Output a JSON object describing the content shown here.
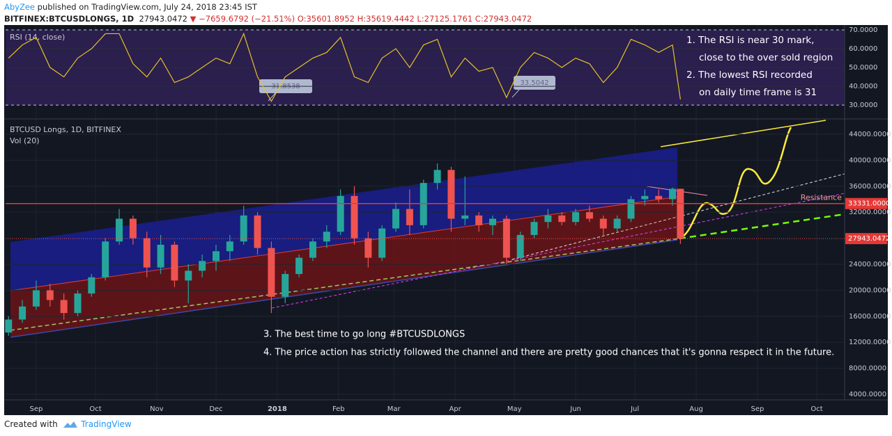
{
  "header": {
    "author": "AbyZee",
    "published": "published on TradingView.com, July 24, 2018 23:45 IST",
    "symbol": "BITFINEX:BTCUSDLONGS, 1D",
    "last": "27943.0472",
    "arrow": "▼",
    "change": "−7659.6792 (−21.51%)",
    "open": "O:35601.8952",
    "high": "H:35619.4442",
    "low": "L:27125.1761",
    "close": "C:27943.0472"
  },
  "chart_data": [
    {
      "type": "line",
      "title": "RSI (14, close)",
      "color": "#e6c229",
      "x": [
        17,
        24,
        31,
        38,
        45,
        52,
        59,
        66,
        73,
        80,
        87,
        94,
        101,
        108,
        115,
        122,
        129,
        136,
        143,
        150,
        157,
        164,
        171,
        178,
        185,
        192,
        199,
        206,
        213,
        220,
        227,
        234,
        241,
        248,
        255,
        262,
        269,
        276,
        283,
        290,
        297,
        304,
        311,
        318,
        325,
        332,
        339,
        346,
        353,
        357
      ],
      "values": [
        55,
        62,
        66,
        50,
        45,
        55,
        60,
        68,
        68,
        52,
        45,
        55,
        42,
        45,
        50,
        55,
        52,
        68,
        45,
        32,
        45,
        50,
        55,
        58,
        66,
        45,
        42,
        55,
        60,
        50,
        62,
        65,
        45,
        55,
        48,
        50,
        34,
        50,
        58,
        55,
        50,
        55,
        52,
        42,
        50,
        65,
        62,
        58,
        62,
        33
      ],
      "xlim": [
        15.5,
        440.1
      ],
      "ylim": [
        23,
        72.6
      ],
      "yticks": [
        {
          "value": 70,
          "label": "70.0000"
        },
        {
          "value": 60,
          "label": "60.0000"
        },
        {
          "value": 50,
          "label": "50.0000"
        },
        {
          "value": 40,
          "label": "40.0000"
        },
        {
          "value": 30,
          "label": "30.0000"
        }
      ],
      "annotations": [
        "31.8538",
        "33.5042"
      ],
      "notes": [
        "1.  The RSI is near 30 mark,",
        "close to the over sold region",
        "2.  The lowest RSI recorded",
        "on daily time frame is 31"
      ]
    },
    {
      "type": "candlestick",
      "title": "BTCUSD Longs, 1D, BITFINEX",
      "subtitle": "Vol (20)",
      "up_color": "#26a69a",
      "down_color": "#ef5350",
      "x": [
        17,
        24,
        31,
        38,
        45,
        52,
        59,
        66,
        73,
        80,
        87,
        94,
        101,
        108,
        115,
        122,
        129,
        136,
        143,
        150,
        157,
        164,
        171,
        178,
        185,
        192,
        199,
        206,
        213,
        220,
        227,
        234,
        241,
        248,
        255,
        262,
        269,
        276,
        283,
        290,
        297,
        304,
        311,
        318,
        325,
        332,
        339,
        346,
        353,
        357
      ],
      "open": [
        13500,
        15500,
        17500,
        20000,
        18500,
        16500,
        19500,
        22000,
        27500,
        31000,
        28000,
        23500,
        27000,
        21500,
        23000,
        24500,
        26000,
        27500,
        31500,
        26500,
        19000,
        22500,
        25000,
        27500,
        29000,
        34500,
        28000,
        25000,
        29500,
        32500,
        30000,
        36500,
        38500,
        31000,
        31500,
        30000,
        31000,
        25000,
        28500,
        30500,
        31500,
        30500,
        32000,
        31000,
        29500,
        31000,
        34000,
        34500,
        34000,
        35601.8952
      ],
      "high": [
        16000,
        18500,
        21500,
        21000,
        19500,
        20000,
        22500,
        28000,
        32500,
        31500,
        29000,
        28500,
        27500,
        24000,
        25500,
        27000,
        28500,
        33000,
        32000,
        27500,
        23000,
        25500,
        28000,
        30000,
        35500,
        36000,
        29000,
        30000,
        33500,
        35500,
        37000,
        39500,
        39000,
        37500,
        32000,
        31500,
        31500,
        29000,
        31000,
        32500,
        32000,
        32500,
        33000,
        31500,
        31500,
        34500,
        35500,
        35500,
        35800,
        35619.4442
      ],
      "low": [
        13000,
        15000,
        17000,
        17500,
        15500,
        16000,
        19000,
        21500,
        27000,
        27000,
        22000,
        22500,
        20500,
        18000,
        22000,
        23000,
        24500,
        27000,
        25500,
        16500,
        18000,
        22000,
        24500,
        26500,
        28500,
        27000,
        23500,
        24500,
        29000,
        28500,
        29500,
        35500,
        29000,
        30000,
        29000,
        28500,
        24000,
        24500,
        28000,
        29500,
        30000,
        30000,
        30500,
        28500,
        29000,
        30500,
        33000,
        33500,
        33000,
        27125.1761
      ],
      "close": [
        15500,
        17500,
        20000,
        18500,
        16500,
        19500,
        22000,
        27500,
        31000,
        28000,
        23500,
        27000,
        21500,
        23000,
        24500,
        26000,
        27500,
        31500,
        26500,
        19000,
        22500,
        25000,
        27500,
        29000,
        34500,
        28000,
        25000,
        29500,
        32500,
        30000,
        36500,
        38500,
        31000,
        31500,
        30000,
        31000,
        25000,
        28500,
        30500,
        31500,
        30500,
        32000,
        31000,
        29500,
        31000,
        34000,
        34500,
        34000,
        35600,
        27943.0472
      ],
      "xlim": [
        15.5,
        440.1
      ],
      "ylim": [
        3150,
        46240
      ],
      "xticks": [
        {
          "value": 31,
          "label": "Sep"
        },
        {
          "value": 61,
          "label": "Oct"
        },
        {
          "value": 92,
          "label": "Nov"
        },
        {
          "value": 122,
          "label": "Dec"
        },
        {
          "value": 153,
          "label": "2018"
        },
        {
          "value": 184,
          "label": "Feb"
        },
        {
          "value": 212,
          "label": "Mar"
        },
        {
          "value": 243,
          "label": "Apr"
        },
        {
          "value": 273,
          "label": "May"
        },
        {
          "value": 304,
          "label": "Jun"
        },
        {
          "value": 334,
          "label": "Jul"
        },
        {
          "value": 365,
          "label": "Aug"
        },
        {
          "value": 396,
          "label": "Sep"
        },
        {
          "value": 426,
          "label": "Oct"
        }
      ],
      "yticks": [
        {
          "value": 44000,
          "label": "44000.0000"
        },
        {
          "value": 40000,
          "label": "40000.0000"
        },
        {
          "value": 36000,
          "label": "36000.0000"
        },
        {
          "value": 32000,
          "label": "32000.0000"
        },
        {
          "value": 24000,
          "label": "24000.0000"
        },
        {
          "value": 20000,
          "label": "20000.0000"
        },
        {
          "value": 16000,
          "label": "16000.0000"
        },
        {
          "value": 12000,
          "label": "12000.0000"
        },
        {
          "value": 8000,
          "label": "8000.0000"
        },
        {
          "value": 4000,
          "label": "4000.0000"
        }
      ],
      "resistance": {
        "value": 33331,
        "label": "33331.0000",
        "text": "Resistance"
      },
      "last_price": {
        "value": 27943.0472,
        "label": "27943.0472"
      },
      "notes": [
        "3. The best time to go long  #BTCUSDLONGS",
        "4. The price action has strictly followed the channel and there are pretty good chances that it's gonna respect it in the future."
      ]
    }
  ],
  "footer": {
    "created": "Created with",
    "brand": "TradingView"
  }
}
